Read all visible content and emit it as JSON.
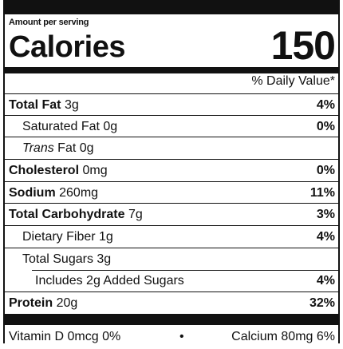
{
  "label": {
    "amount_per_serving": "Amount per serving",
    "calories_label": "Calories",
    "calories_value": "150",
    "daily_value_header": "% Daily Value*",
    "rows": [
      {
        "name": "Total Fat",
        "amount": "3g",
        "dv": "4%"
      },
      {
        "name": "Saturated Fat",
        "amount": "0g",
        "dv": "0%"
      },
      {
        "name": "Trans",
        "name_suffix": "Fat",
        "amount": "0g",
        "dv": ""
      },
      {
        "name": "Cholesterol",
        "amount": "0mg",
        "dv": "0%"
      },
      {
        "name": "Sodium",
        "amount": "260mg",
        "dv": "11%"
      },
      {
        "name": "Total Carbohydrate",
        "amount": "7g",
        "dv": "3%"
      },
      {
        "name": "Dietary Fiber",
        "amount": "1g",
        "dv": "4%"
      },
      {
        "name": "Total Sugars",
        "amount": "3g",
        "dv": ""
      },
      {
        "name": "Includes 2g Added Sugars",
        "amount": "",
        "dv": "4%"
      },
      {
        "name": "Protein",
        "amount": "20g",
        "dv": "32%"
      }
    ],
    "vitamins": {
      "left": "Vitamin D 0mcg 0%",
      "separator": "•",
      "right": "Calcium 80mg 6%"
    }
  }
}
